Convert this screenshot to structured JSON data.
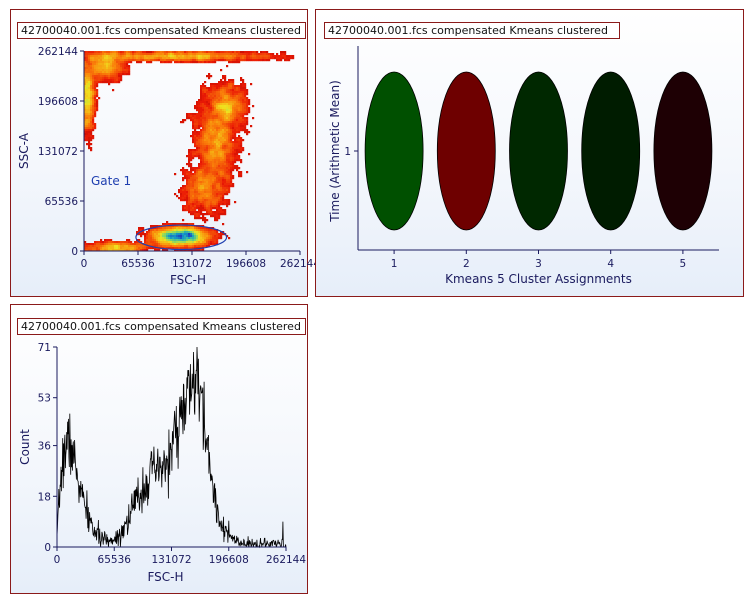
{
  "chart_data": [
    {
      "type": "scatter",
      "title": "42700040.001.fcs compensated Kmeans clustered",
      "xlabel": "FSC-H",
      "ylabel": "SSC-A",
      "xlim": [
        0,
        262144
      ],
      "ylim": [
        0,
        262144
      ],
      "x_ticks": [
        "0",
        "65536",
        "131072",
        "196608",
        "262144"
      ],
      "y_ticks": [
        "0",
        "65536",
        "131072",
        "196608",
        "262144"
      ],
      "density_clusters": [
        {
          "x": 5000,
          "y": 200000,
          "sx": 4000,
          "sy": 25000,
          "n": 500
        },
        {
          "x": 25000,
          "y": 245000,
          "sx": 12000,
          "sy": 10000,
          "n": 450
        },
        {
          "x": 110000,
          "y": 255000,
          "sx": 60000,
          "sy": 2500,
          "n": 700
        },
        {
          "x": 160000,
          "y": 145000,
          "sx": 13000,
          "sy": 32000,
          "n": 1000
        },
        {
          "x": 175000,
          "y": 190000,
          "sx": 10000,
          "sy": 14000,
          "n": 450
        },
        {
          "x": 145000,
          "y": 80000,
          "sx": 13000,
          "sy": 15000,
          "n": 450
        },
        {
          "x": 118000,
          "y": 19000,
          "sx": 17000,
          "sy": 6000,
          "n": 1400
        },
        {
          "x": 40000,
          "y": 5000,
          "sx": 22000,
          "sy": 3000,
          "n": 300
        }
      ],
      "gate": {
        "name": "Gate 1",
        "cx": 118000,
        "cy": 18000,
        "rx": 55000,
        "ry": 16000
      }
    },
    {
      "type": "bar",
      "title": "42700040.001.fcs compensated Kmeans clustered",
      "xlabel": "Kmeans 5 Cluster Assignments",
      "ylabel": "Time (Arithmetic Mean)",
      "categories": [
        "1",
        "2",
        "3",
        "4",
        "5"
      ],
      "y_ticks": [
        "1"
      ],
      "colors": [
        "#005000",
        "#6e0000",
        "#002800",
        "#001c00",
        "#1e0004"
      ]
    },
    {
      "type": "line",
      "title": "42700040.001.fcs compensated Kmeans clustered",
      "xlabel": "FSC-H",
      "ylabel": "Count",
      "xlim": [
        0,
        262144
      ],
      "ylim": [
        0,
        71
      ],
      "x_ticks": [
        "0",
        "65536",
        "131072",
        "196608",
        "262144"
      ],
      "y_ticks": [
        "0",
        "18",
        "36",
        "53",
        "71"
      ],
      "profile": [
        [
          0,
          2
        ],
        [
          4000,
          24
        ],
        [
          9000,
          35
        ],
        [
          14000,
          38
        ],
        [
          20000,
          30
        ],
        [
          27000,
          20
        ],
        [
          34000,
          12
        ],
        [
          42000,
          6
        ],
        [
          50000,
          3
        ],
        [
          60000,
          2
        ],
        [
          70000,
          4
        ],
        [
          80000,
          9
        ],
        [
          90000,
          16
        ],
        [
          100000,
          22
        ],
        [
          108000,
          26
        ],
        [
          116000,
          27
        ],
        [
          124000,
          28
        ],
        [
          132000,
          36
        ],
        [
          140000,
          45
        ],
        [
          148000,
          52
        ],
        [
          154000,
          57
        ],
        [
          160000,
          60
        ],
        [
          166000,
          50
        ],
        [
          172000,
          36
        ],
        [
          178000,
          22
        ],
        [
          186000,
          10
        ],
        [
          196000,
          4
        ],
        [
          210000,
          1
        ],
        [
          225000,
          1
        ],
        [
          240000,
          1
        ],
        [
          255000,
          1
        ],
        [
          262144,
          1
        ]
      ]
    }
  ]
}
